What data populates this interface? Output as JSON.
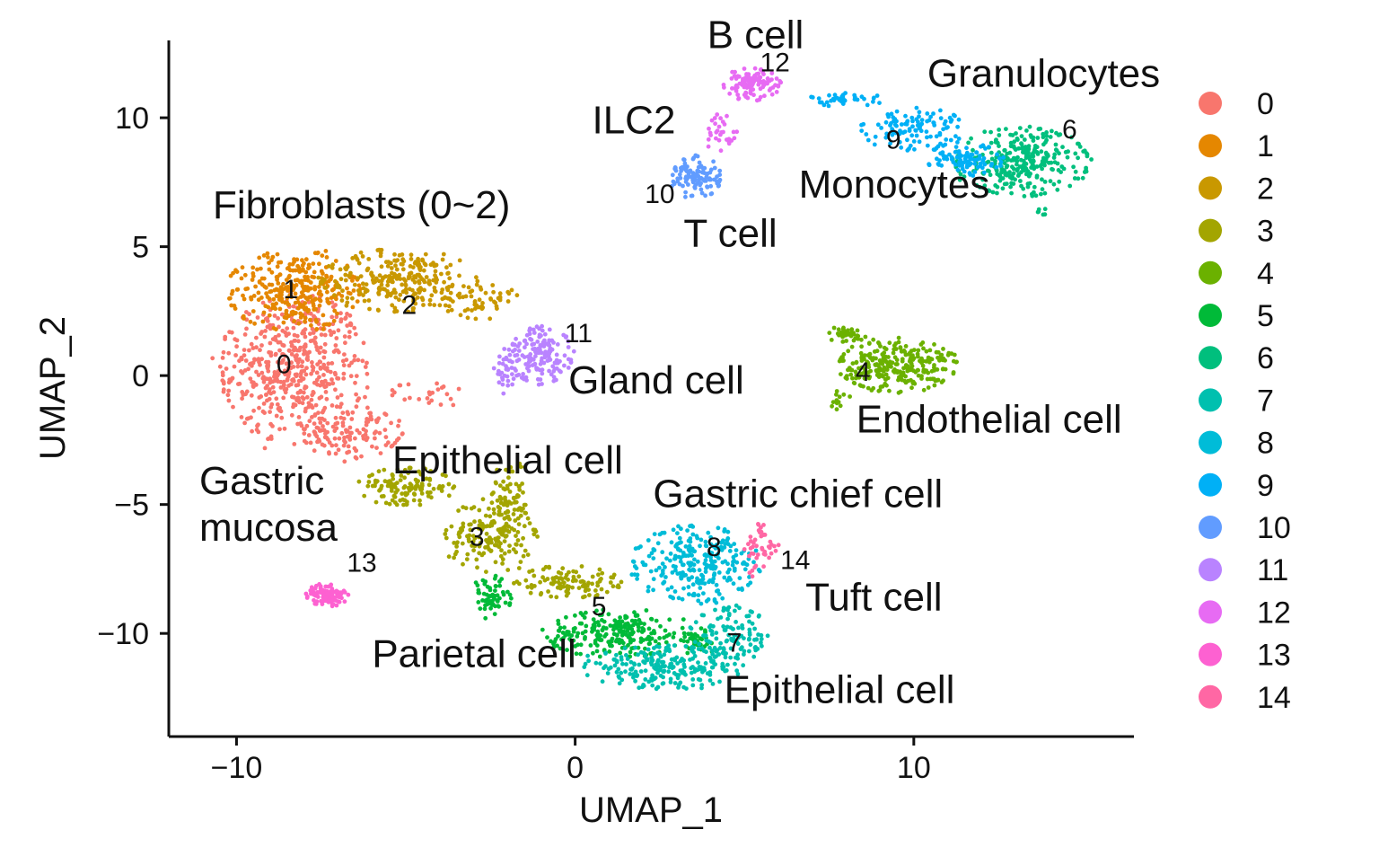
{
  "chart_data": {
    "type": "scatter",
    "xlabel": "UMAP_1",
    "ylabel": "UMAP_2",
    "xlim": [
      -12,
      16.5
    ],
    "ylim": [
      -14,
      13
    ],
    "x_ticks": [
      -10,
      0,
      10
    ],
    "y_ticks": [
      10,
      5,
      0,
      -5,
      -10
    ],
    "x_tick_labels": [
      "−10",
      "0",
      "10"
    ],
    "y_tick_labels": [
      "10",
      "5",
      "0",
      "−5",
      "−10"
    ],
    "grid": false,
    "legend_position": "right",
    "series": [
      {
        "name": "0",
        "color": "#F8766D",
        "blobs": [
          {
            "cx": -8.3,
            "cy": 0.3,
            "rx": 2.1,
            "ry": 2.8,
            "n": 520
          },
          {
            "cx": -6.6,
            "cy": -2.2,
            "rx": 1.4,
            "ry": 1.0,
            "n": 120
          },
          {
            "cx": -4.2,
            "cy": -0.7,
            "rx": 1.2,
            "ry": 0.5,
            "n": 25
          }
        ]
      },
      {
        "name": "1",
        "color": "#E58700",
        "blobs": [
          {
            "cx": -8.3,
            "cy": 3.3,
            "rx": 1.9,
            "ry": 1.5,
            "n": 300
          }
        ]
      },
      {
        "name": "2",
        "color": "#C99800",
        "blobs": [
          {
            "cx": -5.2,
            "cy": 3.7,
            "rx": 2.2,
            "ry": 1.2,
            "n": 260
          },
          {
            "cx": -2.8,
            "cy": 3.0,
            "rx": 1.0,
            "ry": 0.8,
            "n": 60
          }
        ]
      },
      {
        "name": "3",
        "color": "#A3A500",
        "blobs": [
          {
            "cx": -5.0,
            "cy": -4.3,
            "rx": 1.4,
            "ry": 0.7,
            "n": 120
          },
          {
            "cx": -2.5,
            "cy": -6.2,
            "rx": 1.3,
            "ry": 1.4,
            "n": 170
          },
          {
            "cx": -1.9,
            "cy": -4.7,
            "rx": 0.6,
            "ry": 1.5,
            "n": 70
          },
          {
            "cx": -0.2,
            "cy": -8.0,
            "rx": 1.5,
            "ry": 0.6,
            "n": 110
          }
        ]
      },
      {
        "name": "4",
        "color": "#6BB100",
        "blobs": [
          {
            "cx": 9.5,
            "cy": 0.4,
            "rx": 1.7,
            "ry": 1.0,
            "n": 280
          },
          {
            "cx": 8.0,
            "cy": 1.6,
            "rx": 0.6,
            "ry": 0.3,
            "n": 40
          },
          {
            "cx": 7.8,
            "cy": -0.9,
            "rx": 0.3,
            "ry": 0.4,
            "n": 12
          }
        ]
      },
      {
        "name": "5",
        "color": "#00BA38",
        "blobs": [
          {
            "cx": 1.2,
            "cy": -10.0,
            "rx": 2.0,
            "ry": 0.9,
            "n": 230
          },
          {
            "cx": -2.5,
            "cy": -8.6,
            "rx": 0.6,
            "ry": 0.8,
            "n": 60
          },
          {
            "cx": 3.6,
            "cy": -10.3,
            "rx": 0.8,
            "ry": 0.5,
            "n": 40
          }
        ]
      },
      {
        "name": "6",
        "color": "#00BF7D",
        "blobs": [
          {
            "cx": 13.2,
            "cy": 8.3,
            "rx": 1.9,
            "ry": 1.3,
            "n": 300
          },
          {
            "cx": 13.8,
            "cy": 6.4,
            "rx": 0.2,
            "ry": 0.3,
            "n": 6
          }
        ]
      },
      {
        "name": "7",
        "color": "#00C0AF",
        "blobs": [
          {
            "cx": 2.6,
            "cy": -11.3,
            "rx": 2.3,
            "ry": 0.8,
            "n": 220
          },
          {
            "cx": 4.6,
            "cy": -10.2,
            "rx": 1.2,
            "ry": 1.2,
            "n": 120
          }
        ]
      },
      {
        "name": "8",
        "color": "#00BCD8",
        "blobs": [
          {
            "cx": 3.6,
            "cy": -7.3,
            "rx": 1.8,
            "ry": 1.4,
            "n": 260
          }
        ]
      },
      {
        "name": "9",
        "color": "#00B0F6",
        "blobs": [
          {
            "cx": 10.0,
            "cy": 9.6,
            "rx": 1.5,
            "ry": 0.8,
            "n": 110
          },
          {
            "cx": 11.5,
            "cy": 8.4,
            "rx": 1.1,
            "ry": 0.6,
            "n": 90
          },
          {
            "cx": 8.0,
            "cy": 10.7,
            "rx": 1.1,
            "ry": 0.25,
            "n": 40
          }
        ]
      },
      {
        "name": "10",
        "color": "#619CFF",
        "blobs": [
          {
            "cx": 3.6,
            "cy": 7.7,
            "rx": 0.7,
            "ry": 0.8,
            "n": 110
          }
        ]
      },
      {
        "name": "11",
        "color": "#B983FF",
        "blobs": [
          {
            "cx": -1.0,
            "cy": 0.8,
            "rx": 0.9,
            "ry": 1.1,
            "n": 150
          },
          {
            "cx": -2.0,
            "cy": 0.1,
            "rx": 0.4,
            "ry": 0.9,
            "n": 40
          }
        ]
      },
      {
        "name": "12",
        "color": "#E76BF3",
        "blobs": [
          {
            "cx": 5.2,
            "cy": 11.3,
            "rx": 0.8,
            "ry": 0.6,
            "n": 110
          },
          {
            "cx": 4.3,
            "cy": 9.4,
            "rx": 0.5,
            "ry": 0.7,
            "n": 30
          }
        ]
      },
      {
        "name": "13",
        "color": "#FD61D1",
        "blobs": [
          {
            "cx": -7.3,
            "cy": -8.5,
            "rx": 0.6,
            "ry": 0.45,
            "n": 90
          }
        ]
      },
      {
        "name": "14",
        "color": "#FF67A4",
        "blobs": [
          {
            "cx": 5.5,
            "cy": -6.8,
            "rx": 0.5,
            "ry": 1.1,
            "n": 45
          }
        ]
      }
    ],
    "cluster_labels": [
      {
        "text": "0",
        "x": -8.6,
        "y": 0.1
      },
      {
        "text": "1",
        "x": -8.4,
        "y": 3.0
      },
      {
        "text": "2",
        "x": -4.9,
        "y": 2.4
      },
      {
        "text": "3",
        "x": -2.9,
        "y": -6.6
      },
      {
        "text": "4",
        "x": 8.5,
        "y": -0.2
      },
      {
        "text": "5",
        "x": 0.7,
        "y": -9.3
      },
      {
        "text": "6",
        "x": 14.6,
        "y": 9.2
      },
      {
        "text": "7",
        "x": 4.7,
        "y": -10.7
      },
      {
        "text": "8",
        "x": 4.1,
        "y": -7.0
      },
      {
        "text": "9",
        "x": 9.4,
        "y": 8.8
      },
      {
        "text": "10",
        "x": 2.5,
        "y": 6.7
      },
      {
        "text": "11",
        "x": 0.1,
        "y": 1.3
      },
      {
        "text": "12",
        "x": 5.9,
        "y": 11.8
      },
      {
        "text": "13",
        "x": -6.3,
        "y": -7.6
      },
      {
        "text": "14",
        "x": 6.5,
        "y": -7.5
      }
    ],
    "annotations": [
      {
        "text": "B cell",
        "x": 3.9,
        "y": 12.7
      },
      {
        "text": "Granulocytes",
        "x": 10.4,
        "y": 11.2
      },
      {
        "text": "ILC2",
        "x": 0.5,
        "y": 9.4
      },
      {
        "text": "Monocytes",
        "x": 6.6,
        "y": 6.9
      },
      {
        "text": "T cell",
        "x": 3.2,
        "y": 5.0
      },
      {
        "text": "Fibroblasts (0~2)",
        "x": -10.7,
        "y": 6.1
      },
      {
        "text": "Gland cell",
        "x": -0.2,
        "y": -0.7
      },
      {
        "text": "Endothelial cell",
        "x": 8.3,
        "y": -2.2
      },
      {
        "text": "Epithelial cell",
        "x": -5.4,
        "y": -3.8
      },
      {
        "text": "Gastric",
        "x": -11.1,
        "y": -4.6
      },
      {
        "text": "mucosa",
        "x": -11.1,
        "y": -6.4
      },
      {
        "text": "Gastric chief cell",
        "x": 2.3,
        "y": -5.1
      },
      {
        "text": "Tuft cell",
        "x": 6.8,
        "y": -9.1
      },
      {
        "text": "Parietal cell",
        "x": -6.0,
        "y": -11.3
      },
      {
        "text": "Epithelial cell",
        "x": 4.4,
        "y": -12.7
      }
    ]
  }
}
